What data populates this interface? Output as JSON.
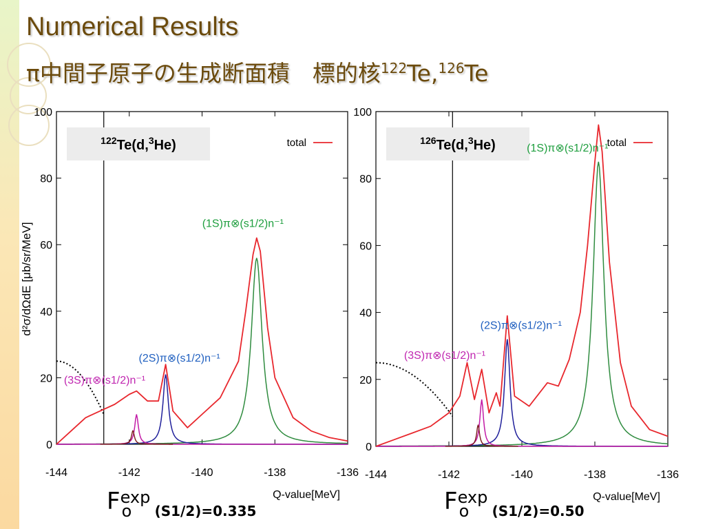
{
  "title": "Numerical Results",
  "subtitle": {
    "prefix": "π中間子原子の生成断面積　標的核",
    "mass1": "122",
    "sep": "Te,",
    "mass2": "126",
    "suffix": "Te"
  },
  "colors": {
    "title": "#6b4a0c",
    "total": "#e8272d",
    "one_s": "#2e8b3e",
    "two_s": "#1f1f9a",
    "three_s": "#c21aa6",
    "deep": "#7a1a1a",
    "label_1s": "#1e9e3e",
    "label_2s": "#2060c0",
    "label_3s": "#c026b0"
  },
  "ylabel": "d²σ/dΩdE [μb/sr/MeV]",
  "legend_total": "total",
  "chart_data": [
    {
      "type": "line",
      "reaction": {
        "mass": "122",
        "rest": "Te(d,",
        "sup": "3",
        "tail": "He)"
      },
      "xlabel": "Q-value[MeV]",
      "xlim": [
        -144,
        -136
      ],
      "ylim": [
        0,
        100
      ],
      "xticks": [
        "-144",
        "-142",
        "-140",
        "-138",
        "-136"
      ],
      "yticks": [
        "0",
        "20",
        "40",
        "60",
        "80",
        "100"
      ],
      "threshold_x": -142.7,
      "peaks": [
        {
          "name": "(1S)π⊗(s1/2)n⁻¹",
          "x": -138.5,
          "height": 56,
          "width": 0.18
        },
        {
          "name": "(2S)π⊗(s1/2)n⁻¹",
          "x": -141.0,
          "height": 21,
          "width": 0.09
        },
        {
          "name": "(3S)π⊗(s1/2)n⁻¹",
          "x": -141.8,
          "height": 9,
          "width": 0.06
        }
      ],
      "series": [
        {
          "name": "total",
          "x": [
            -144,
            -143.6,
            -143.2,
            -142.8,
            -142.4,
            -142.0,
            -141.8,
            -141.5,
            -141.2,
            -141.0,
            -140.8,
            -140.4,
            -140.0,
            -139.5,
            -139.0,
            -138.8,
            -138.6,
            -138.5,
            -138.4,
            -138.2,
            -138.0,
            -137.5,
            -137.0,
            -136.5,
            -136
          ],
          "y": [
            0,
            4,
            8,
            10,
            12,
            15,
            16,
            13,
            13,
            24,
            10,
            5,
            9,
            14,
            25,
            40,
            57,
            62,
            58,
            35,
            20,
            8,
            4,
            2,
            1
          ]
        }
      ],
      "label_offsets": {
        "one_s": [
          0,
          -25
        ],
        "two_s": [
          -10,
          -12
        ],
        "three_s": [
          0,
          0
        ]
      },
      "fexp": {
        "sup": "exp",
        "sub": "o",
        "value": "(S1/2)=0.335"
      }
    },
    {
      "type": "line",
      "reaction": {
        "mass": "126",
        "rest": "Te(d,",
        "sup": "3",
        "tail": "He)"
      },
      "xlabel": "Q-value[MeV]",
      "xlim": [
        -144,
        -136
      ],
      "ylim": [
        0,
        100
      ],
      "xticks": [
        "-144",
        "-142",
        "-140",
        "-138",
        "-136"
      ],
      "yticks": [
        "0",
        "20",
        "40",
        "60",
        "80",
        "100"
      ],
      "threshold_x": -141.9,
      "peaks": [
        {
          "name": "(1S)π⊗(s1/2)n⁻¹",
          "x": -137.9,
          "height": 85,
          "width": 0.18
        },
        {
          "name": "(2S)π⊗(s1/2)n⁻¹",
          "x": -140.4,
          "height": 32,
          "width": 0.09
        },
        {
          "name": "(3S)π⊗(s1/2)n⁻¹",
          "x": -141.1,
          "height": 14,
          "width": 0.06
        }
      ],
      "series": [
        {
          "name": "total",
          "x": [
            -144,
            -143.5,
            -143.0,
            -142.5,
            -142.0,
            -141.7,
            -141.5,
            -141.3,
            -141.1,
            -140.9,
            -140.7,
            -140.6,
            -140.4,
            -140.2,
            -139.8,
            -139.3,
            -139.0,
            -138.7,
            -138.4,
            -138.2,
            -138.0,
            -137.9,
            -137.8,
            -137.6,
            -137.3,
            -137.0,
            -136.5,
            -136
          ],
          "y": [
            0,
            2,
            4,
            6,
            10,
            15,
            25,
            14,
            23,
            10,
            16,
            12,
            39,
            15,
            12,
            19,
            18,
            26,
            40,
            60,
            85,
            96,
            88,
            55,
            25,
            12,
            5,
            3
          ]
        }
      ],
      "label_offsets": {
        "one_s": [
          -25,
          5
        ],
        "two_s": [
          -10,
          0
        ],
        "three_s": [
          0,
          0
        ]
      },
      "fexp": {
        "sup": "exp",
        "sub": "o",
        "value": "(S1/2)=0.50"
      }
    }
  ]
}
